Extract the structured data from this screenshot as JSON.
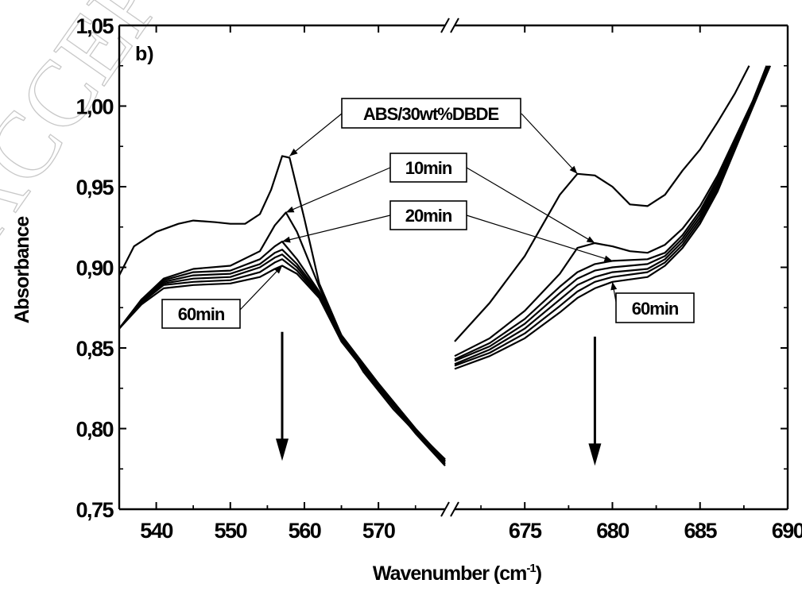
{
  "watermark": "ACCEPTED",
  "chart_data": {
    "type": "line",
    "panel_label": "b)",
    "xlabel": "Wavenumber (cm",
    "xlabel_sup": "-1",
    "xlabel_end": ")",
    "ylabel": "Absorbance",
    "ylim": [
      0.75,
      1.05
    ],
    "yticks": [
      0.75,
      0.8,
      0.85,
      0.9,
      0.95,
      1.0,
      1.05
    ],
    "ytick_labels": [
      "0,75",
      "0,80",
      "0,85",
      "0,90",
      "0,95",
      "1,00",
      "1,05"
    ],
    "x_broken_axis": true,
    "x_segments": [
      {
        "xlim": [
          535,
          579
        ],
        "ticks": [
          540,
          550,
          560,
          570
        ],
        "tick_labels": [
          "540",
          "550",
          "560",
          "570"
        ]
      },
      {
        "xlim": [
          671,
          690
        ],
        "ticks": [
          675,
          680,
          685,
          690
        ],
        "tick_labels": [
          "675",
          "680",
          "685",
          "690"
        ]
      }
    ],
    "series": [
      {
        "left": [
          [
            535,
            0.895
          ],
          [
            537,
            0.913
          ],
          [
            540,
            0.922
          ],
          [
            543,
            0.927
          ],
          [
            545,
            0.929
          ],
          [
            548,
            0.928
          ],
          [
            550,
            0.927
          ],
          [
            552,
            0.927
          ],
          [
            554,
            0.933
          ],
          [
            555.5,
            0.948
          ],
          [
            557,
            0.969
          ],
          [
            558,
            0.968
          ],
          [
            560,
            0.93
          ],
          [
            562,
            0.89
          ],
          [
            565,
            0.858
          ],
          [
            568,
            0.835
          ],
          [
            572,
            0.812
          ],
          [
            576,
            0.793
          ],
          [
            579,
            0.781
          ]
        ],
        "right": [
          [
            671,
            0.854
          ],
          [
            673,
            0.878
          ],
          [
            675,
            0.907
          ],
          [
            677,
            0.945
          ],
          [
            678,
            0.958
          ],
          [
            679,
            0.957
          ],
          [
            680,
            0.95
          ],
          [
            681,
            0.939
          ],
          [
            682,
            0.938
          ],
          [
            683,
            0.945
          ],
          [
            684,
            0.96
          ],
          [
            685,
            0.973
          ],
          [
            686,
            0.99
          ],
          [
            687,
            1.008
          ],
          [
            687.8,
            1.025
          ]
        ]
      },
      {
        "left": [
          [
            535,
            0.862
          ],
          [
            538,
            0.88
          ],
          [
            541,
            0.893
          ],
          [
            545,
            0.899
          ],
          [
            550,
            0.901
          ],
          [
            554,
            0.91
          ],
          [
            556,
            0.926
          ],
          [
            557.5,
            0.934
          ],
          [
            559,
            0.922
          ],
          [
            562,
            0.888
          ],
          [
            565,
            0.856
          ],
          [
            570,
            0.827
          ],
          [
            575,
            0.799
          ],
          [
            579,
            0.781
          ]
        ],
        "right": [
          [
            671,
            0.845
          ],
          [
            673,
            0.856
          ],
          [
            675,
            0.873
          ],
          [
            677,
            0.896
          ],
          [
            678,
            0.912
          ],
          [
            679,
            0.915
          ],
          [
            680,
            0.913
          ],
          [
            681,
            0.91
          ],
          [
            682,
            0.909
          ],
          [
            683,
            0.914
          ],
          [
            684,
            0.924
          ],
          [
            685,
            0.938
          ],
          [
            686,
            0.957
          ],
          [
            687,
            0.98
          ],
          [
            688,
            1.003
          ],
          [
            688.8,
            1.025
          ]
        ]
      },
      {
        "left": [
          [
            535,
            0.862
          ],
          [
            538,
            0.88
          ],
          [
            541,
            0.892
          ],
          [
            545,
            0.897
          ],
          [
            550,
            0.898
          ],
          [
            554,
            0.905
          ],
          [
            556,
            0.913
          ],
          [
            557,
            0.916
          ],
          [
            559,
            0.905
          ],
          [
            562,
            0.885
          ],
          [
            565,
            0.858
          ],
          [
            570,
            0.828
          ],
          [
            575,
            0.8
          ],
          [
            579,
            0.78
          ]
        ],
        "right": [
          [
            671,
            0.843
          ],
          [
            673,
            0.853
          ],
          [
            675,
            0.868
          ],
          [
            677,
            0.888
          ],
          [
            678,
            0.897
          ],
          [
            679,
            0.902
          ],
          [
            680,
            0.904
          ],
          [
            682,
            0.905
          ],
          [
            683,
            0.909
          ],
          [
            684,
            0.92
          ],
          [
            685,
            0.935
          ],
          [
            686,
            0.955
          ],
          [
            687,
            0.978
          ],
          [
            688,
            1.002
          ],
          [
            688.8,
            1.025
          ]
        ]
      },
      {
        "left": [
          [
            535,
            0.862
          ],
          [
            538,
            0.88
          ],
          [
            541,
            0.891
          ],
          [
            545,
            0.895
          ],
          [
            550,
            0.896
          ],
          [
            554,
            0.902
          ],
          [
            556,
            0.909
          ],
          [
            557,
            0.911
          ],
          [
            559,
            0.902
          ],
          [
            562,
            0.884
          ],
          [
            565,
            0.857
          ],
          [
            570,
            0.828
          ],
          [
            575,
            0.8
          ],
          [
            579,
            0.78
          ]
        ],
        "right": [
          [
            671,
            0.842
          ],
          [
            673,
            0.851
          ],
          [
            675,
            0.865
          ],
          [
            677,
            0.884
          ],
          [
            678,
            0.893
          ],
          [
            679,
            0.898
          ],
          [
            680,
            0.9
          ],
          [
            682,
            0.902
          ],
          [
            683,
            0.907
          ],
          [
            684,
            0.918
          ],
          [
            685,
            0.933
          ],
          [
            686,
            0.953
          ],
          [
            687,
            0.977
          ],
          [
            688,
            1.001
          ],
          [
            688.9,
            1.025
          ]
        ]
      },
      {
        "left": [
          [
            535,
            0.862
          ],
          [
            538,
            0.879
          ],
          [
            541,
            0.89
          ],
          [
            545,
            0.893
          ],
          [
            550,
            0.894
          ],
          [
            554,
            0.9
          ],
          [
            556,
            0.906
          ],
          [
            557,
            0.908
          ],
          [
            559,
            0.9
          ],
          [
            562,
            0.883
          ],
          [
            565,
            0.856
          ],
          [
            570,
            0.827
          ],
          [
            575,
            0.799
          ],
          [
            579,
            0.779
          ]
        ],
        "right": [
          [
            671,
            0.84
          ],
          [
            673,
            0.849
          ],
          [
            675,
            0.862
          ],
          [
            677,
            0.88
          ],
          [
            678,
            0.889
          ],
          [
            679,
            0.894
          ],
          [
            680,
            0.897
          ],
          [
            682,
            0.899
          ],
          [
            683,
            0.905
          ],
          [
            684,
            0.916
          ],
          [
            685,
            0.931
          ],
          [
            686,
            0.951
          ],
          [
            687,
            0.976
          ],
          [
            688,
            1.0
          ],
          [
            688.9,
            1.025
          ]
        ]
      },
      {
        "left": [
          [
            535,
            0.862
          ],
          [
            538,
            0.878
          ],
          [
            541,
            0.889
          ],
          [
            545,
            0.891
          ],
          [
            550,
            0.892
          ],
          [
            554,
            0.897
          ],
          [
            556,
            0.903
          ],
          [
            557,
            0.905
          ],
          [
            559,
            0.898
          ],
          [
            562,
            0.882
          ],
          [
            565,
            0.855
          ],
          [
            570,
            0.826
          ],
          [
            575,
            0.798
          ],
          [
            579,
            0.778
          ]
        ],
        "right": [
          [
            671,
            0.839
          ],
          [
            673,
            0.847
          ],
          [
            675,
            0.859
          ],
          [
            677,
            0.876
          ],
          [
            678,
            0.885
          ],
          [
            679,
            0.891
          ],
          [
            680,
            0.894
          ],
          [
            682,
            0.897
          ],
          [
            683,
            0.903
          ],
          [
            684,
            0.914
          ],
          [
            685,
            0.929
          ],
          [
            686,
            0.949
          ],
          [
            687,
            0.975
          ],
          [
            688,
            1.0
          ],
          [
            689,
            1.025
          ]
        ]
      },
      {
        "left": [
          [
            535,
            0.862
          ],
          [
            538,
            0.877
          ],
          [
            541,
            0.887
          ],
          [
            545,
            0.889
          ],
          [
            550,
            0.89
          ],
          [
            554,
            0.894
          ],
          [
            556,
            0.899
          ],
          [
            557,
            0.901
          ],
          [
            559,
            0.896
          ],
          [
            562,
            0.881
          ],
          [
            565,
            0.854
          ],
          [
            570,
            0.825
          ],
          [
            575,
            0.797
          ],
          [
            579,
            0.777
          ]
        ],
        "right": [
          [
            671,
            0.837
          ],
          [
            673,
            0.845
          ],
          [
            675,
            0.856
          ],
          [
            677,
            0.872
          ],
          [
            678,
            0.881
          ],
          [
            679,
            0.887
          ],
          [
            680,
            0.891
          ],
          [
            682,
            0.894
          ],
          [
            683,
            0.901
          ],
          [
            684,
            0.912
          ],
          [
            685,
            0.927
          ],
          [
            686,
            0.947
          ],
          [
            687,
            0.973
          ],
          [
            688,
            0.999
          ],
          [
            689,
            1.025
          ]
        ]
      }
    ],
    "labels": [
      {
        "text": "ABS/30wt%DBDE",
        "targets": [
          [
            558,
            0.969
          ],
          [
            678,
            0.958
          ]
        ]
      },
      {
        "text": "10min",
        "targets": [
          [
            557.5,
            0.934
          ],
          [
            679,
            0.915
          ]
        ]
      },
      {
        "text": "20min",
        "targets": [
          [
            557,
            0.916
          ],
          [
            680,
            0.904
          ]
        ]
      },
      {
        "text": "60min",
        "targets": [
          [
            557,
            0.901
          ]
        ]
      },
      {
        "text": "60min",
        "targets": [
          [
            680,
            0.891
          ]
        ]
      }
    ],
    "trend_arrows": [
      {
        "x": 557,
        "y_start": 0.86,
        "y_end": 0.78,
        "direction": "down"
      },
      {
        "x": 679,
        "y_start": 0.857,
        "y_end": 0.777,
        "direction": "down"
      }
    ],
    "legend": "none",
    "grid": false
  }
}
